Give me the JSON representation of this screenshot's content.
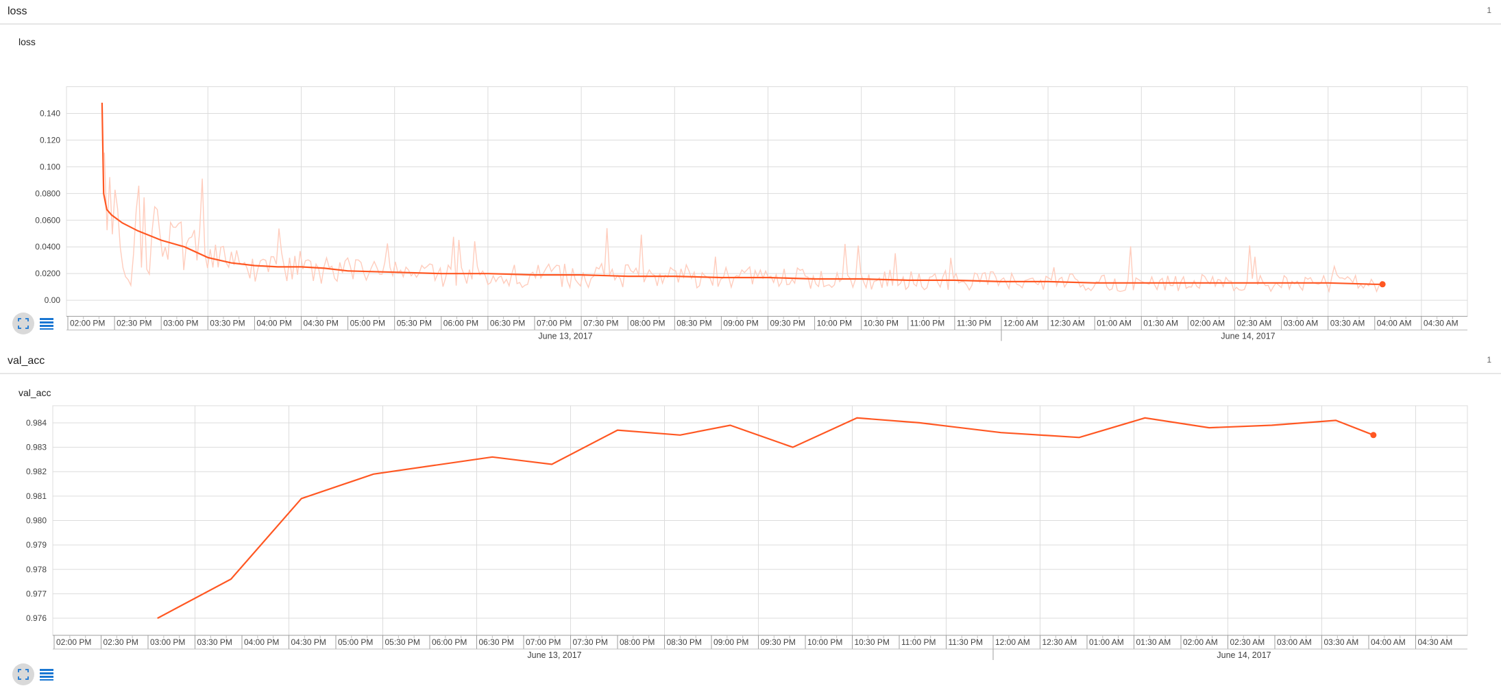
{
  "sections": [
    {
      "title": "loss",
      "count": "1",
      "card_title": "loss"
    },
    {
      "title": "val_acc",
      "count": "1",
      "card_title": "val_acc"
    }
  ],
  "colors": {
    "series": "#ff5722",
    "series_raw": "#ffccbc",
    "grid": "#dcdcdc",
    "axis_text": "#424242",
    "button_bg": "#d9d9d9",
    "icon": "#1976d2"
  },
  "icons": {
    "expand": "fullscreen-icon",
    "data": "list-icon"
  },
  "chart_data": [
    {
      "type": "line",
      "title": "loss",
      "xlabel": "",
      "ylabel": "",
      "x_axis": "time",
      "x_tick_labels": [
        "02:00 PM",
        "02:30 PM",
        "03:00 PM",
        "03:30 PM",
        "04:00 PM",
        "04:30 PM",
        "05:00 PM",
        "05:30 PM",
        "06:00 PM",
        "06:30 PM",
        "07:00 PM",
        "07:30 PM",
        "08:00 PM",
        "08:30 PM",
        "09:00 PM",
        "09:30 PM",
        "10:00 PM",
        "10:30 PM",
        "11:00 PM",
        "11:30 PM",
        "12:00 AM",
        "12:30 AM",
        "01:00 AM",
        "01:30 AM",
        "02:00 AM",
        "02:30 AM",
        "03:00 AM",
        "03:30 AM",
        "04:00 AM",
        "04:30 AM"
      ],
      "x_date_labels": [
        "June 13, 2017",
        "June 14, 2017"
      ],
      "y_tick_labels": [
        "0.00",
        "0.0200",
        "0.0400",
        "0.0600",
        "0.0800",
        "0.100",
        "0.120",
        "0.140"
      ],
      "y_tick_values": [
        0,
        0.02,
        0.04,
        0.06,
        0.08,
        0.1,
        0.12,
        0.14
      ],
      "ylim": [
        -0.012,
        0.16
      ],
      "grid": true,
      "series": [
        {
          "x": [
            "2017-06-13 14:22",
            "2017-06-13 14:23",
            "2017-06-13 14:25",
            "2017-06-13 14:28",
            "2017-06-13 14:35",
            "2017-06-13 14:45",
            "2017-06-13 15:00",
            "2017-06-13 15:15",
            "2017-06-13 15:30",
            "2017-06-13 15:45",
            "2017-06-13 16:00",
            "2017-06-13 16:15",
            "2017-06-13 16:30",
            "2017-06-13 16:45",
            "2017-06-13 17:00",
            "2017-06-13 17:30",
            "2017-06-13 18:00",
            "2017-06-13 18:30",
            "2017-06-13 19:00",
            "2017-06-13 19:30",
            "2017-06-13 20:00",
            "2017-06-13 20:30",
            "2017-06-13 21:00",
            "2017-06-13 21:30",
            "2017-06-13 22:00",
            "2017-06-13 22:30",
            "2017-06-13 23:00",
            "2017-06-13 23:30",
            "2017-06-14 00:00",
            "2017-06-14 00:30",
            "2017-06-14 01:00",
            "2017-06-14 01:30",
            "2017-06-14 02:00",
            "2017-06-14 02:30",
            "2017-06-14 03:00",
            "2017-06-14 03:30",
            "2017-06-14 04:00",
            "2017-06-14 04:05"
          ],
          "y": [
            0.148,
            0.08,
            0.068,
            0.064,
            0.058,
            0.052,
            0.045,
            0.04,
            0.032,
            0.028,
            0.026,
            0.025,
            0.025,
            0.024,
            0.022,
            0.021,
            0.02,
            0.02,
            0.019,
            0.019,
            0.018,
            0.018,
            0.017,
            0.017,
            0.016,
            0.016,
            0.015,
            0.015,
            0.014,
            0.014,
            0.013,
            0.013,
            0.013,
            0.013,
            0.013,
            0.013,
            0.012,
            0.012
          ]
        }
      ]
    },
    {
      "type": "line",
      "title": "val_acc",
      "xlabel": "",
      "ylabel": "",
      "x_axis": "time",
      "x_tick_labels": [
        "02:00 PM",
        "02:30 PM",
        "03:00 PM",
        "03:30 PM",
        "04:00 PM",
        "04:30 PM",
        "05:00 PM",
        "05:30 PM",
        "06:00 PM",
        "06:30 PM",
        "07:00 PM",
        "07:30 PM",
        "08:00 PM",
        "08:30 PM",
        "09:00 PM",
        "09:30 PM",
        "10:00 PM",
        "10:30 PM",
        "11:00 PM",
        "11:30 PM",
        "12:00 AM",
        "12:30 AM",
        "01:00 AM",
        "01:30 AM",
        "02:00 AM",
        "02:30 AM",
        "03:00 AM",
        "03:30 AM",
        "04:00 AM",
        "04:30 AM"
      ],
      "x_date_labels": [
        "June 13, 2017",
        "June 14, 2017"
      ],
      "y_tick_labels": [
        "0.976",
        "0.977",
        "0.978",
        "0.979",
        "0.980",
        "0.981",
        "0.982",
        "0.983",
        "0.984"
      ],
      "y_tick_values": [
        0.976,
        0.977,
        0.978,
        0.979,
        0.98,
        0.981,
        0.982,
        0.983,
        0.984
      ],
      "ylim": [
        0.9753,
        0.9847
      ],
      "grid": true,
      "series": [
        {
          "x": [
            "2017-06-13 15:06",
            "2017-06-13 15:53",
            "2017-06-13 16:38",
            "2017-06-13 17:24",
            "2017-06-13 18:40",
            "2017-06-13 19:18",
            "2017-06-13 20:00",
            "2017-06-13 20:40",
            "2017-06-13 21:12",
            "2017-06-13 21:52",
            "2017-06-13 22:33",
            "2017-06-13 23:13",
            "2017-06-14 00:05",
            "2017-06-14 00:55",
            "2017-06-14 01:37",
            "2017-06-14 02:18",
            "2017-06-14 02:58",
            "2017-06-14 03:39",
            "2017-06-14 04:03"
          ],
          "y": [
            0.976,
            0.9776,
            0.9809,
            0.9819,
            0.9826,
            0.9823,
            0.9837,
            0.9835,
            0.9839,
            0.983,
            0.9842,
            0.984,
            0.9836,
            0.9834,
            0.9842,
            0.9838,
            0.9839,
            0.9841,
            0.9835
          ]
        }
      ]
    }
  ]
}
